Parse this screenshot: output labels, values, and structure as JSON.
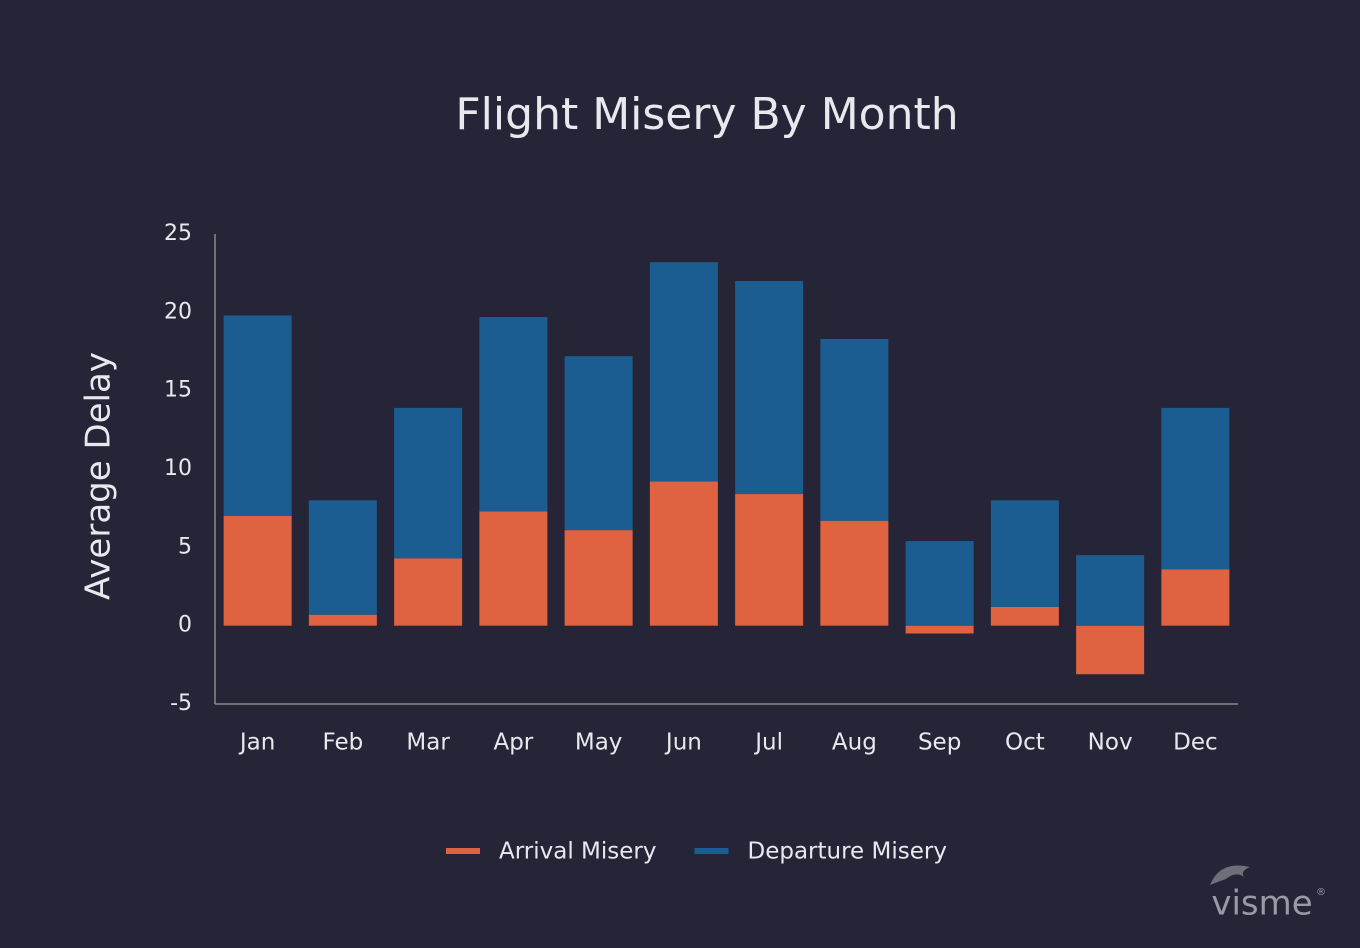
{
  "chart_data": {
    "type": "stacked-bar",
    "title": "Flight Misery By Month",
    "y_label": "Average Delay",
    "categories": [
      "Jan",
      "Feb",
      "Mar",
      "Apr",
      "May",
      "Jun",
      "Jul",
      "Aug",
      "Sep",
      "Oct",
      "Nov",
      "Dec"
    ],
    "series": [
      {
        "name": "Arrival Misery",
        "color": "#e06341",
        "values": [
          7.0,
          0.7,
          4.3,
          7.3,
          6.1,
          9.2,
          8.4,
          6.7,
          -0.5,
          1.2,
          -3.1,
          3.6
        ]
      },
      {
        "name": "Departure Misery",
        "color": "#1c5d91",
        "values": [
          12.8,
          7.3,
          9.6,
          12.4,
          11.1,
          14.0,
          13.6,
          11.6,
          5.4,
          6.8,
          4.5,
          10.3
        ]
      }
    ],
    "ylim": [
      -5,
      25
    ],
    "yticks": [
      -5,
      0,
      5,
      10,
      15,
      20,
      25
    ],
    "grid": false,
    "legend": "bottom",
    "watermark": "visme",
    "watermark_mark": "®"
  }
}
